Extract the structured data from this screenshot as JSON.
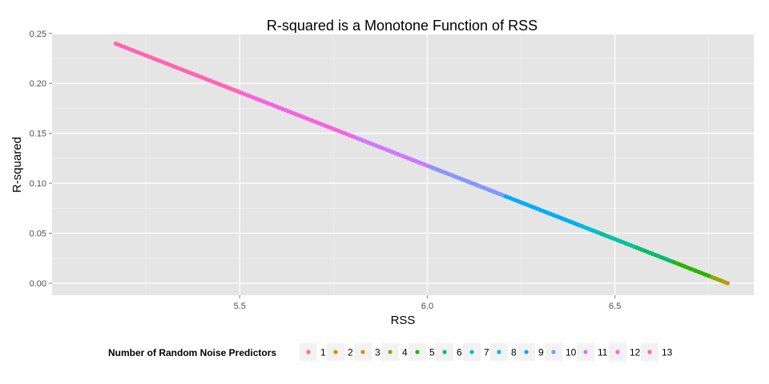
{
  "chart_data": {
    "type": "scatter",
    "title": "R-squared is a Monotone Function of RSS",
    "xlabel": "RSS",
    "ylabel": "R-squared",
    "xlim": [
      5.0,
      6.87
    ],
    "ylim": [
      -0.012,
      0.249
    ],
    "xticks": [
      5.5,
      6.0,
      6.5
    ],
    "xtick_labels": [
      "5.5",
      "6.0",
      "6.5"
    ],
    "yticks": [
      0.0,
      0.05,
      0.1,
      0.15,
      0.2,
      0.25
    ],
    "ytick_labels": [
      "0.00",
      "0.05",
      "0.10",
      "0.15",
      "0.20",
      "0.25"
    ],
    "grid": true,
    "relationship": "R-squared = 1 - RSS / 6.80 (linear, decreasing)",
    "legend": {
      "title": "Number of Random Noise Predictors",
      "position": "bottom"
    },
    "series": [
      {
        "name": "1",
        "color": "#F8766D",
        "rss_range": [
          6.7,
          6.8
        ]
      },
      {
        "name": "2",
        "color": "#E18A00",
        "rss_range": [
          6.55,
          6.8
        ]
      },
      {
        "name": "3",
        "color": "#BE9C00",
        "rss_range": [
          6.45,
          6.8
        ]
      },
      {
        "name": "4",
        "color": "#8CAB00",
        "rss_range": [
          6.4,
          6.78
        ]
      },
      {
        "name": "5",
        "color": "#24B700",
        "rss_range": [
          6.35,
          6.75
        ]
      },
      {
        "name": "6",
        "color": "#00BE70",
        "rss_range": [
          6.25,
          6.65
        ]
      },
      {
        "name": "7",
        "color": "#00C1AB",
        "rss_range": [
          6.1,
          6.55
        ]
      },
      {
        "name": "8",
        "color": "#00BBDA",
        "rss_range": [
          5.95,
          6.45
        ]
      },
      {
        "name": "9",
        "color": "#00ACFC",
        "rss_range": [
          5.8,
          6.4
        ]
      },
      {
        "name": "10",
        "color": "#8B93FF",
        "rss_range": [
          5.55,
          6.2
        ]
      },
      {
        "name": "11",
        "color": "#D575FE",
        "rss_range": [
          5.35,
          6.0
        ]
      },
      {
        "name": "12",
        "color": "#F962DD",
        "rss_range": [
          5.17,
          5.8
        ]
      },
      {
        "name": "13",
        "color": "#FF65AC",
        "rss_range": [
          5.17,
          5.5
        ]
      }
    ]
  }
}
